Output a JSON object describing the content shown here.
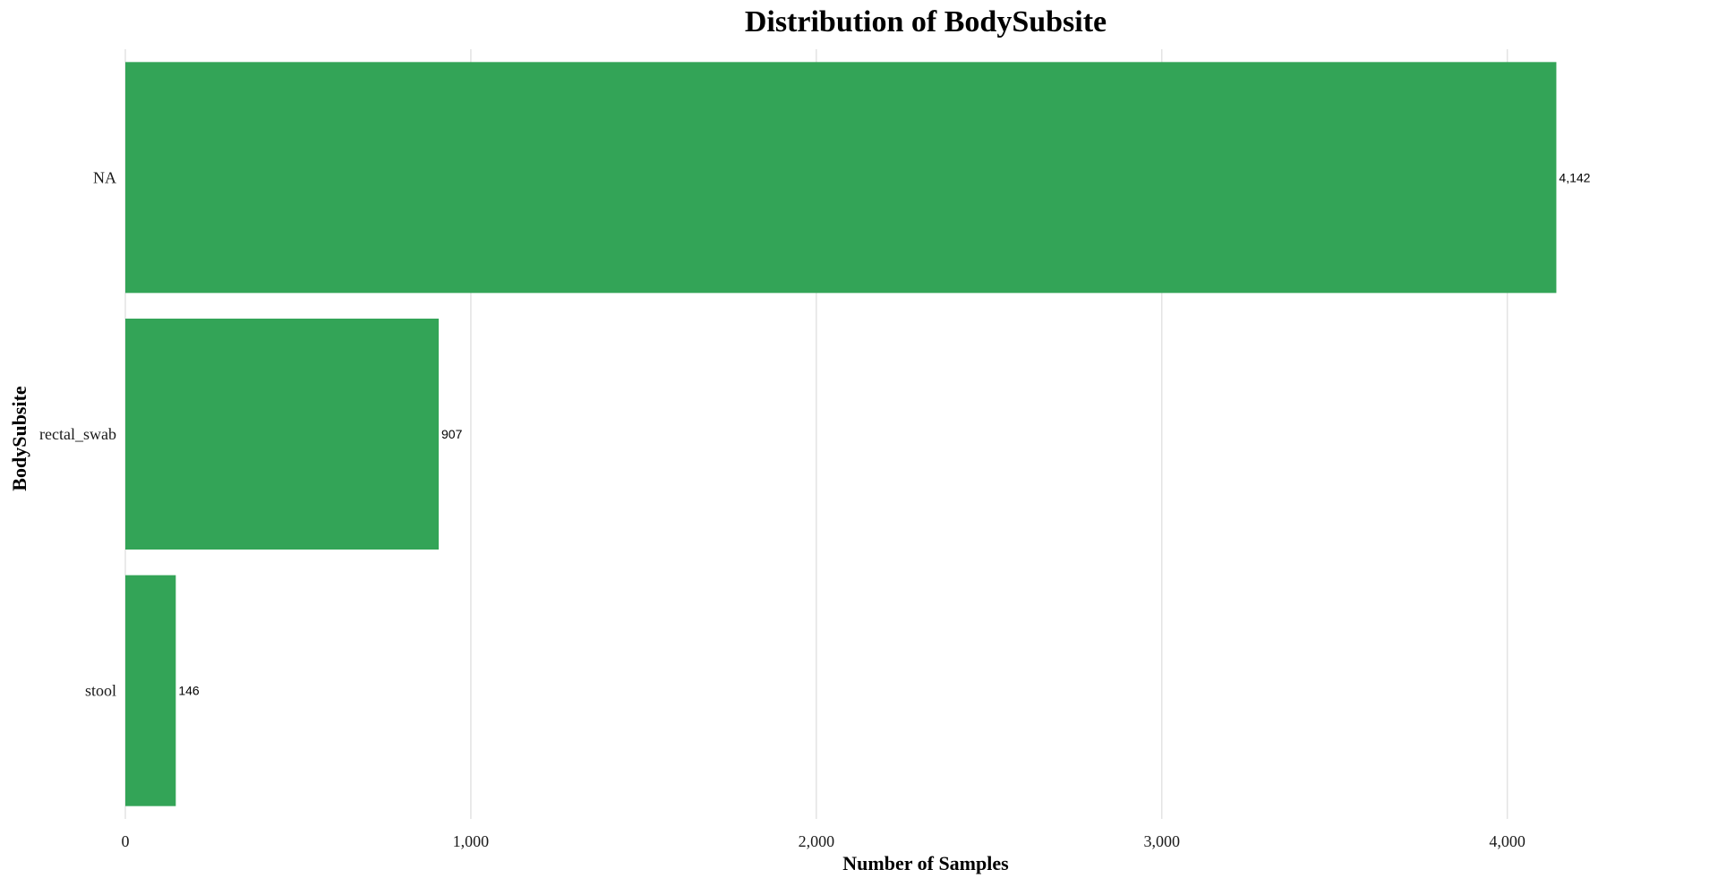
{
  "chart_data": {
    "type": "bar",
    "orientation": "horizontal",
    "title": "Distribution of BodySubsite",
    "xlabel": "Number of Samples",
    "ylabel": "BodySubsite",
    "categories": [
      "NA",
      "rectal_swab",
      "stool"
    ],
    "values": [
      4142,
      907,
      146
    ],
    "data_labels": [
      "4,142",
      "907",
      "146"
    ],
    "x_ticks": [
      0,
      1000,
      2000,
      3000,
      4000
    ],
    "x_tick_labels": [
      "0",
      "1,000",
      "2,000",
      "3,000",
      "4,000"
    ],
    "xlim": [
      0,
      4400
    ],
    "grid": "vertical",
    "legend": "none",
    "bar_color": "#33a457"
  }
}
